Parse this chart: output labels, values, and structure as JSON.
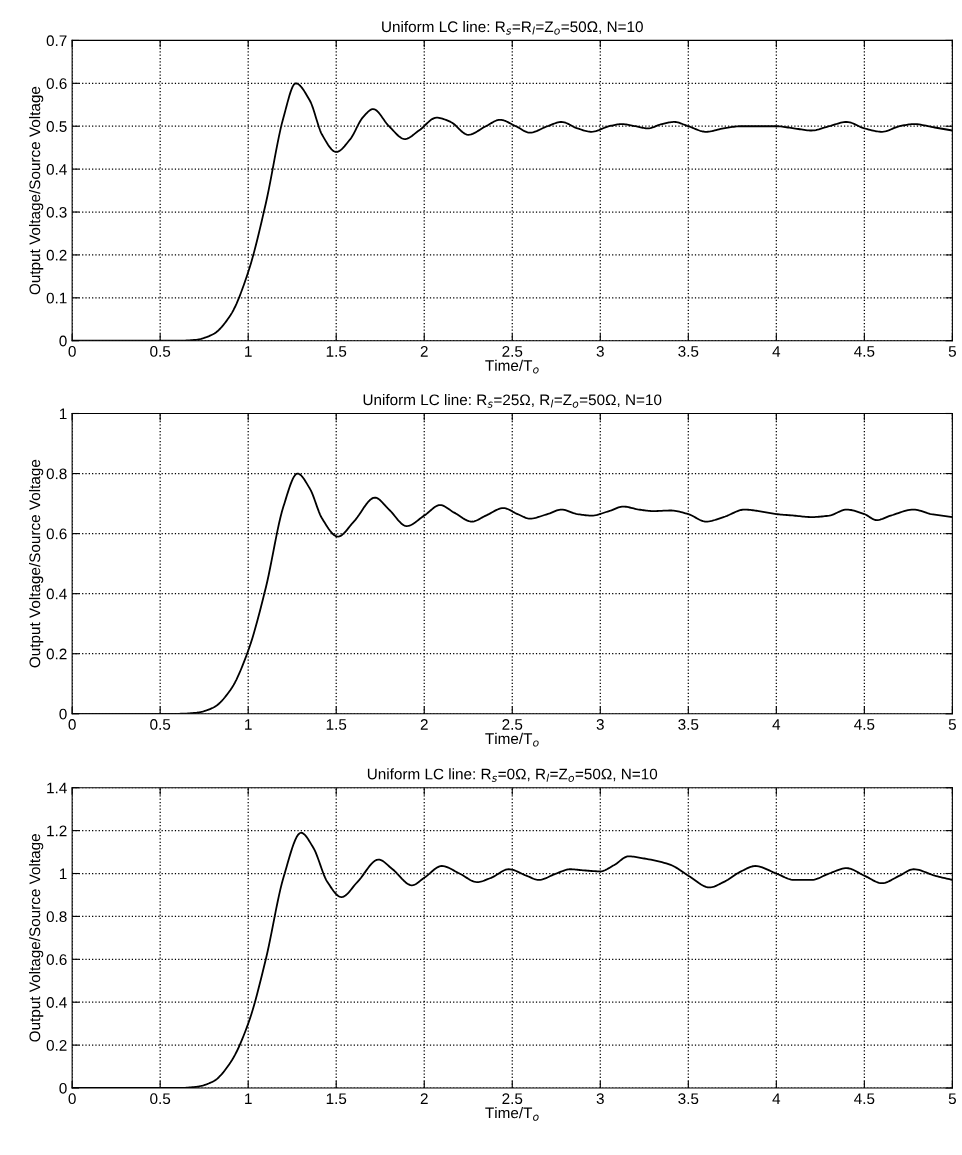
{
  "chart_data": [
    {
      "type": "line",
      "title": "Uniform LC line: R$_{s}$=R$_{l}$=Z$_{o}$=50Ω, N=10",
      "xlabel": "Time/T$_{o}$",
      "ylabel": "Output Voltage/Source Voltage",
      "xlim": [
        0,
        5
      ],
      "xticks": [
        0,
        0.5,
        1,
        1.5,
        2,
        2.5,
        3,
        3.5,
        4,
        4.5,
        5
      ],
      "ylim": [
        0,
        0.7
      ],
      "yticks": [
        0,
        0.1,
        0.2,
        0.3,
        0.4,
        0.5,
        0.6,
        0.7
      ],
      "grid": true,
      "line_style": "solid",
      "series": [
        {
          "color": "#000000",
          "x": [
            0,
            0.6,
            0.7,
            0.8,
            0.9,
            1.0,
            1.1,
            1.2,
            1.27,
            1.35,
            1.42,
            1.5,
            1.58,
            1.65,
            1.71,
            1.8,
            1.89,
            1.97,
            2.07,
            2.15,
            2.25,
            2.35,
            2.43,
            2.52,
            2.6,
            2.7,
            2.78,
            2.87,
            2.95,
            3.05,
            3.12,
            3.2,
            3.27,
            3.35,
            3.42,
            3.5,
            3.6,
            3.7,
            3.8,
            3.9,
            4.0,
            4.1,
            4.2,
            4.3,
            4.4,
            4.5,
            4.6,
            4.7,
            4.78,
            4.9,
            5
          ],
          "values": [
            0,
            0,
            0.002,
            0.015,
            0.06,
            0.16,
            0.32,
            0.52,
            0.6,
            0.56,
            0.48,
            0.44,
            0.47,
            0.52,
            0.54,
            0.5,
            0.47,
            0.49,
            0.52,
            0.51,
            0.48,
            0.5,
            0.515,
            0.5,
            0.485,
            0.5,
            0.51,
            0.495,
            0.487,
            0.5,
            0.505,
            0.5,
            0.495,
            0.505,
            0.51,
            0.5,
            0.487,
            0.495,
            0.5,
            0.5,
            0.5,
            0.495,
            0.49,
            0.5,
            0.51,
            0.495,
            0.487,
            0.5,
            0.505,
            0.497,
            0.49
          ]
        }
      ]
    },
    {
      "type": "line",
      "title": "Uniform LC line: R$_{s}$=25Ω, R$_{l}$=Z$_{o}$=50Ω, N=10",
      "xlabel": "Time/T$_{o}$",
      "ylabel": "Output Voltage/Source Voltage",
      "xlim": [
        0,
        5
      ],
      "xticks": [
        0,
        0.5,
        1,
        1.5,
        2,
        2.5,
        3,
        3.5,
        4,
        4.5,
        5
      ],
      "ylim": [
        0,
        1
      ],
      "yticks": [
        0,
        0.2,
        0.4,
        0.6,
        0.8,
        1
      ],
      "grid": true,
      "line_style": "solid",
      "series": [
        {
          "color": "#000000",
          "x": [
            0,
            0.6,
            0.7,
            0.8,
            0.9,
            1.0,
            1.1,
            1.2,
            1.28,
            1.35,
            1.42,
            1.51,
            1.6,
            1.72,
            1.8,
            1.9,
            2.0,
            2.09,
            2.17,
            2.27,
            2.35,
            2.45,
            2.53,
            2.6,
            2.7,
            2.78,
            2.87,
            2.95,
            3.05,
            3.13,
            3.22,
            3.3,
            3.4,
            3.5,
            3.6,
            3.7,
            3.82,
            3.9,
            4.0,
            4.1,
            4.2,
            4.3,
            4.4,
            4.5,
            4.57,
            4.65,
            4.78,
            4.88,
            5
          ],
          "values": [
            0,
            0,
            0.003,
            0.02,
            0.08,
            0.21,
            0.42,
            0.69,
            0.8,
            0.75,
            0.65,
            0.59,
            0.64,
            0.72,
            0.68,
            0.625,
            0.66,
            0.695,
            0.67,
            0.64,
            0.66,
            0.685,
            0.665,
            0.65,
            0.665,
            0.68,
            0.665,
            0.66,
            0.675,
            0.69,
            0.68,
            0.675,
            0.677,
            0.665,
            0.64,
            0.655,
            0.68,
            0.675,
            0.665,
            0.66,
            0.655,
            0.66,
            0.68,
            0.665,
            0.645,
            0.66,
            0.68,
            0.665,
            0.655
          ]
        }
      ]
    },
    {
      "type": "line",
      "title": "Uniform LC line: R$_{s}$=0Ω, R$_{l}$=Z$_{o}$=50Ω, N=10",
      "xlabel": "Time/T$_{o}$",
      "ylabel": "Output Voltage/Source Voltage",
      "xlim": [
        0,
        5
      ],
      "xticks": [
        0,
        0.5,
        1,
        1.5,
        2,
        2.5,
        3,
        3.5,
        4,
        4.5,
        5
      ],
      "ylim": [
        0,
        1.4
      ],
      "yticks": [
        0,
        0.2,
        0.4,
        0.6,
        0.8,
        1,
        1.2,
        1.4
      ],
      "grid": true,
      "line_style": "solid",
      "series": [
        {
          "color": "#000000",
          "x": [
            0,
            0.6,
            0.7,
            0.8,
            0.9,
            1.0,
            1.1,
            1.2,
            1.3,
            1.37,
            1.45,
            1.53,
            1.62,
            1.74,
            1.82,
            1.93,
            2.0,
            2.1,
            2.2,
            2.3,
            2.38,
            2.48,
            2.58,
            2.65,
            2.75,
            2.83,
            2.9,
            3.0,
            3.08,
            3.16,
            3.25,
            3.4,
            3.5,
            3.62,
            3.7,
            3.8,
            3.88,
            4.0,
            4.1,
            4.2,
            4.3,
            4.4,
            4.5,
            4.6,
            4.7,
            4.78,
            4.9,
            5
          ],
          "values": [
            0,
            0,
            0.005,
            0.03,
            0.12,
            0.3,
            0.6,
            0.98,
            1.19,
            1.12,
            0.96,
            0.89,
            0.96,
            1.065,
            1.02,
            0.945,
            0.98,
            1.035,
            1.0,
            0.96,
            0.98,
            1.02,
            0.99,
            0.97,
            1.0,
            1.02,
            1.015,
            1.01,
            1.04,
            1.08,
            1.07,
            1.04,
            0.99,
            0.935,
            0.96,
            1.01,
            1.035,
            1.0,
            0.97,
            0.97,
            1.0,
            1.025,
            0.99,
            0.955,
            0.99,
            1.02,
            0.99,
            0.97
          ]
        }
      ]
    }
  ]
}
